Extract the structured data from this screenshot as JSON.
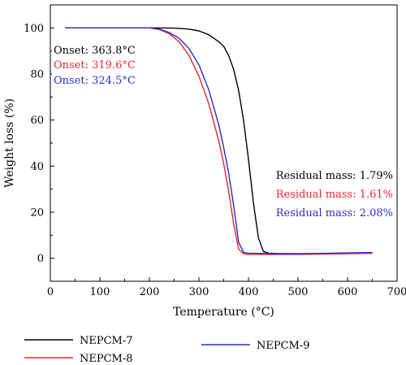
{
  "chart_data": {
    "type": "line",
    "xlabel": "Temperature (°C)",
    "ylabel": "Weight loss (%)",
    "xlim": [
      0,
      700
    ],
    "ylim": [
      -10,
      110
    ],
    "xticks": [
      0,
      100,
      200,
      300,
      400,
      500,
      600,
      700
    ],
    "yticks": [
      0,
      20,
      40,
      60,
      80,
      100
    ],
    "grid": false,
    "legend_position": "bottom",
    "series": [
      {
        "name": "NEPCM-7",
        "color": "#000000",
        "x": [
          30,
          200,
          250,
          280,
          300,
          320,
          340,
          350,
          360,
          370,
          380,
          390,
          400,
          410,
          420,
          430,
          440,
          460,
          500,
          550,
          600,
          650
        ],
        "y": [
          100,
          100,
          99.9,
          99.5,
          98.7,
          97,
          94,
          92,
          88,
          82,
          73,
          60,
          43,
          24,
          9,
          3,
          2.2,
          2.0,
          1.9,
          1.9,
          2.1,
          2.3
        ]
      },
      {
        "name": "NEPCM-8",
        "color": "#e8262d",
        "x": [
          30,
          200,
          220,
          240,
          260,
          280,
          300,
          320,
          340,
          350,
          360,
          370,
          380,
          390,
          400,
          420,
          450,
          500,
          550,
          600,
          650
        ],
        "y": [
          100,
          100,
          99.3,
          97.5,
          94,
          88,
          79,
          67,
          51,
          41,
          29,
          15,
          4,
          1.9,
          1.7,
          1.7,
          1.6,
          1.7,
          1.8,
          2.0,
          2.1
        ]
      },
      {
        "name": "NEPCM-9",
        "color": "#2c2cc8",
        "x": [
          30,
          200,
          220,
          240,
          260,
          280,
          300,
          320,
          340,
          350,
          360,
          370,
          380,
          390,
          400,
          420,
          450,
          500,
          550,
          600,
          650
        ],
        "y": [
          100,
          100,
          99.5,
          98,
          95.5,
          91,
          84,
          73,
          58,
          48,
          37,
          23,
          7,
          2.6,
          2.2,
          2.1,
          2.0,
          2.0,
          2.1,
          2.3,
          2.5
        ]
      }
    ],
    "annotations": [
      {
        "text": "Onset: 363.8°C",
        "color": "#000000"
      },
      {
        "text": "Onset: 319.6°C",
        "color": "#e8262d"
      },
      {
        "text": "Onset: 324.5°C",
        "color": "#2c2cc8"
      },
      {
        "text": "Residual mass: 1.79%",
        "color": "#000000"
      },
      {
        "text": "Residual mass: 1.61%",
        "color": "#e8262d"
      },
      {
        "text": "Residual mass: 2.08%",
        "color": "#2c2cc8"
      }
    ]
  }
}
